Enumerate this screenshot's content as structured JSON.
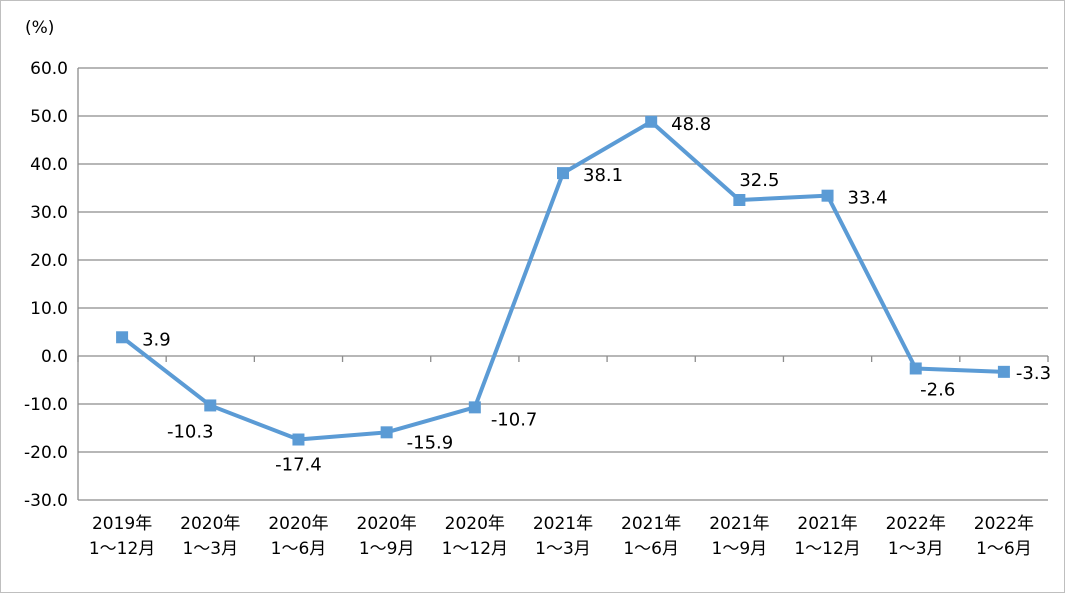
{
  "chart_data": {
    "type": "line",
    "unit_label": "(%)",
    "categories": [
      [
        "2019年",
        "1～12月"
      ],
      [
        "2020年",
        "1～3月"
      ],
      [
        "2020年",
        "1～6月"
      ],
      [
        "2020年",
        "1～9月"
      ],
      [
        "2020年",
        "1～12月"
      ],
      [
        "2021年",
        "1～3月"
      ],
      [
        "2021年",
        "1～6月"
      ],
      [
        "2021年",
        "1～9月"
      ],
      [
        "2021年",
        "1～12月"
      ],
      [
        "2022年",
        "1～3月"
      ],
      [
        "2022年",
        "1～6月"
      ]
    ],
    "series": [
      {
        "values": [
          3.9,
          -10.3,
          -17.4,
          -15.9,
          -10.7,
          38.1,
          48.8,
          32.5,
          33.4,
          -2.6,
          -3.3
        ],
        "color": "#5b9bd5"
      }
    ],
    "data_labels": [
      "3.9",
      "-10.3",
      "-17.4",
      "-15.9",
      "-10.7",
      "38.1",
      "48.8",
      "32.5",
      "33.4",
      "-2.6",
      "-3.3"
    ],
    "ylim": [
      -30,
      60
    ],
    "yticks": [
      "60.0",
      "50.0",
      "40.0",
      "30.0",
      "20.0",
      "10.0",
      "0.0",
      "-10.0",
      "-20.0",
      "-30.0"
    ],
    "grid": true,
    "legend": "none",
    "gridline_color": "#8c8c8c"
  }
}
